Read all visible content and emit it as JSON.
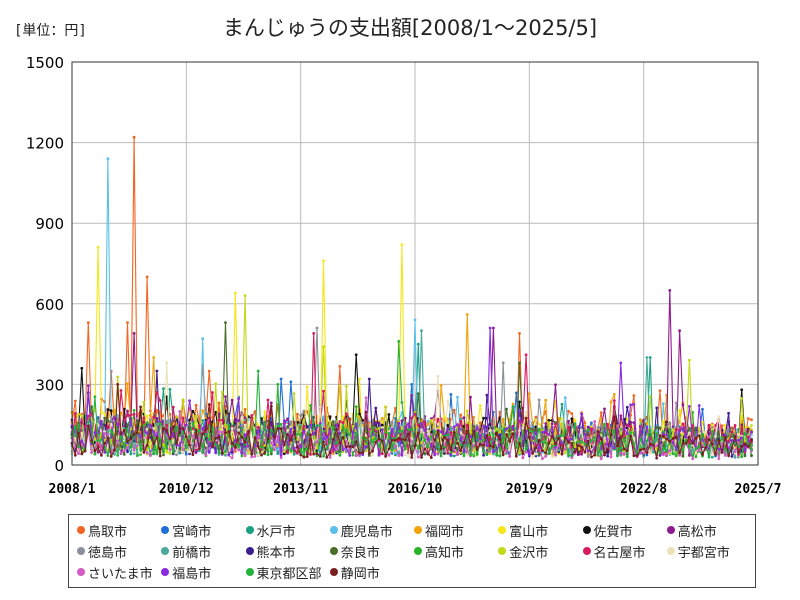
{
  "unit_label": "[単位：円]",
  "title": "まんじゅうの支出額[2008/1～2025/5]",
  "chart_data": {
    "type": "line",
    "title": "まんじゅうの支出額[2008/1～2025/5]",
    "unit": "[単位：円]",
    "x_range": [
      "2008-01",
      "2025-05"
    ],
    "ylim": [
      0,
      1500
    ],
    "y_ticks": [
      0,
      300,
      600,
      900,
      1200,
      1500
    ],
    "x_ticks": [
      "2008/1",
      "2010/12",
      "2013/11",
      "2016/10",
      "2019/9",
      "2022/8",
      "2025/7"
    ],
    "grid": true,
    "legend_position": "bottom",
    "series": [
      {
        "name": "鳥取市",
        "color": "#f26522",
        "base": 150,
        "peaks": [
          [
            "2009-08",
            1220
          ],
          [
            "2009-12",
            700
          ],
          [
            "2009-06",
            530
          ],
          [
            "2008-06",
            530
          ],
          [
            "2019-06",
            490
          ]
        ]
      },
      {
        "name": "宮崎市",
        "color": "#1f6fd6",
        "base": 120,
        "peaks": [
          [
            "2016-09",
            300
          ],
          [
            "2013-05",
            320
          ]
        ]
      },
      {
        "name": "水戸市",
        "color": "#1aa082",
        "base": 110,
        "peaks": [
          [
            "2016-11",
            450
          ],
          [
            "2022-10",
            400
          ]
        ]
      },
      {
        "name": "鹿児島市",
        "color": "#5bc0eb",
        "base": 120,
        "peaks": [
          [
            "2008-12",
            1140
          ],
          [
            "2016-10",
            540
          ],
          [
            "2011-05",
            470
          ]
        ]
      },
      {
        "name": "福岡市",
        "color": "#f0a30a",
        "base": 130,
        "peaks": [
          [
            "2018-02",
            560
          ],
          [
            "2010-02",
            400
          ]
        ]
      },
      {
        "name": "富山市",
        "color": "#f5e61b",
        "base": 130,
        "peaks": [
          [
            "2008-09",
            810
          ],
          [
            "2016-06",
            820
          ],
          [
            "2014-06",
            760
          ],
          [
            "2012-03",
            640
          ]
        ]
      },
      {
        "name": "佐賀市",
        "color": "#111111",
        "base": 130,
        "peaks": [
          [
            "2008-04",
            360
          ],
          [
            "2015-04",
            410
          ],
          [
            "2025-02",
            280
          ]
        ]
      },
      {
        "name": "高松市",
        "color": "#8e1b8e",
        "base": 130,
        "peaks": [
          [
            "2023-04",
            650
          ],
          [
            "2023-07",
            500
          ],
          [
            "2018-10",
            510
          ],
          [
            "2009-08",
            490
          ]
        ]
      },
      {
        "name": "徳島市",
        "color": "#8a8f99",
        "base": 110,
        "peaks": [
          [
            "2014-04",
            510
          ],
          [
            "2019-01",
            380
          ]
        ]
      },
      {
        "name": "前橋市",
        "color": "#4aa99b",
        "base": 100,
        "peaks": [
          [
            "2016-12",
            500
          ],
          [
            "2022-09",
            400
          ]
        ]
      },
      {
        "name": "熊本市",
        "color": "#3b1f8f",
        "base": 110,
        "peaks": [
          [
            "2010-03",
            350
          ],
          [
            "2015-08",
            320
          ]
        ]
      },
      {
        "name": "奈良市",
        "color": "#4a6e2a",
        "base": 110,
        "peaks": [
          [
            "2011-12",
            530
          ],
          [
            "2019-06",
            380
          ]
        ]
      },
      {
        "name": "高知市",
        "color": "#2bb32b",
        "base": 100,
        "peaks": [
          [
            "2016-05",
            460
          ],
          [
            "2013-04",
            300
          ]
        ]
      },
      {
        "name": "金沢市",
        "color": "#c4d81a",
        "base": 120,
        "peaks": [
          [
            "2012-06",
            630
          ],
          [
            "2014-06",
            440
          ],
          [
            "2023-10",
            390
          ]
        ]
      },
      {
        "name": "名古屋市",
        "color": "#d81b60",
        "base": 120,
        "peaks": [
          [
            "2014-03",
            490
          ],
          [
            "2019-08",
            410
          ]
        ]
      },
      {
        "name": "宇都宮市",
        "color": "#eae3b8",
        "base": 100,
        "peaks": [
          [
            "2010-06",
            380
          ],
          [
            "2017-05",
            330
          ]
        ]
      },
      {
        "name": "さいたま市",
        "color": "#d35bc4",
        "base": 80,
        "peaks": [
          [
            "2015-07",
            250
          ]
        ]
      },
      {
        "name": "福島市",
        "color": "#8a2be2",
        "base": 110,
        "peaks": [
          [
            "2018-09",
            510
          ],
          [
            "2022-01",
            380
          ]
        ]
      },
      {
        "name": "東京都区部",
        "color": "#23b23b",
        "base": 100,
        "peaks": [
          [
            "2012-10",
            350
          ]
        ]
      },
      {
        "name": "静岡市",
        "color": "#7a1f1f",
        "base": 90,
        "peaks": [
          [
            "2009-03",
            300
          ]
        ]
      }
    ]
  }
}
